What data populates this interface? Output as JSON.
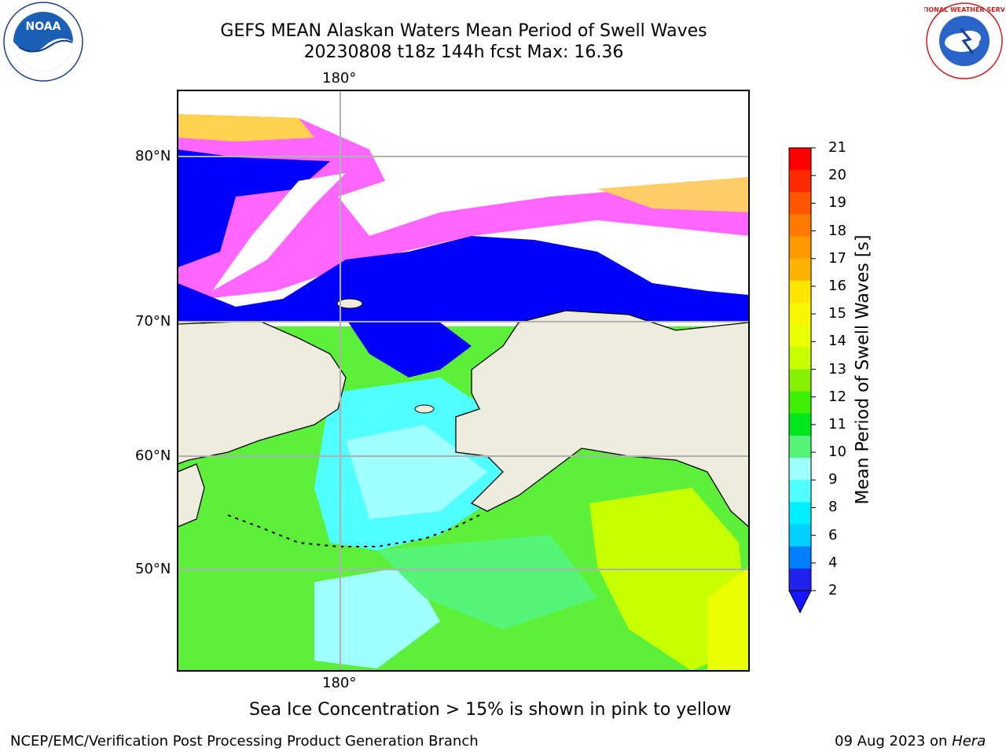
{
  "header": {
    "title_line1": "GEFS MEAN Alaskan Waters Mean Period of Swell Waves",
    "title_line2": "20230808 t18z 144h fcst   Max: 16.36"
  },
  "logos": {
    "left": "NOAA",
    "right": "NATIONAL WEATHER SERVICE"
  },
  "map": {
    "lon_labels": [
      "180°",
      "180°"
    ],
    "lat_labels": [
      "80°N",
      "70°N",
      "60°N",
      "50°N"
    ]
  },
  "colorbar": {
    "label": "Mean Period of Swell Waves [s]",
    "ticks": [
      "21",
      "20",
      "19",
      "18",
      "17",
      "16",
      "15",
      "14",
      "13",
      "12",
      "11",
      "10",
      "9",
      "8",
      "6",
      "4",
      "2"
    ],
    "colors": [
      "#ff0000",
      "#ff2a00",
      "#ff5500",
      "#ff7a00",
      "#ff9900",
      "#ffb300",
      "#ffe600",
      "#f7f700",
      "#eaff00",
      "#c8ff00",
      "#86f000",
      "#3cf000",
      "#00e61e",
      "#55f57a",
      "#a0ffff",
      "#50ffff",
      "#00f0ff",
      "#00d0ff",
      "#0080ff",
      "#2222ee"
    ]
  },
  "note": "Sea Ice Concentration > 15% is shown in pink to yellow",
  "footer": {
    "left": "NCEP/EMC/Verification Post Processing Product Generation Branch",
    "right_date": "09 Aug 2023 on",
    "right_host": "Hera"
  }
}
